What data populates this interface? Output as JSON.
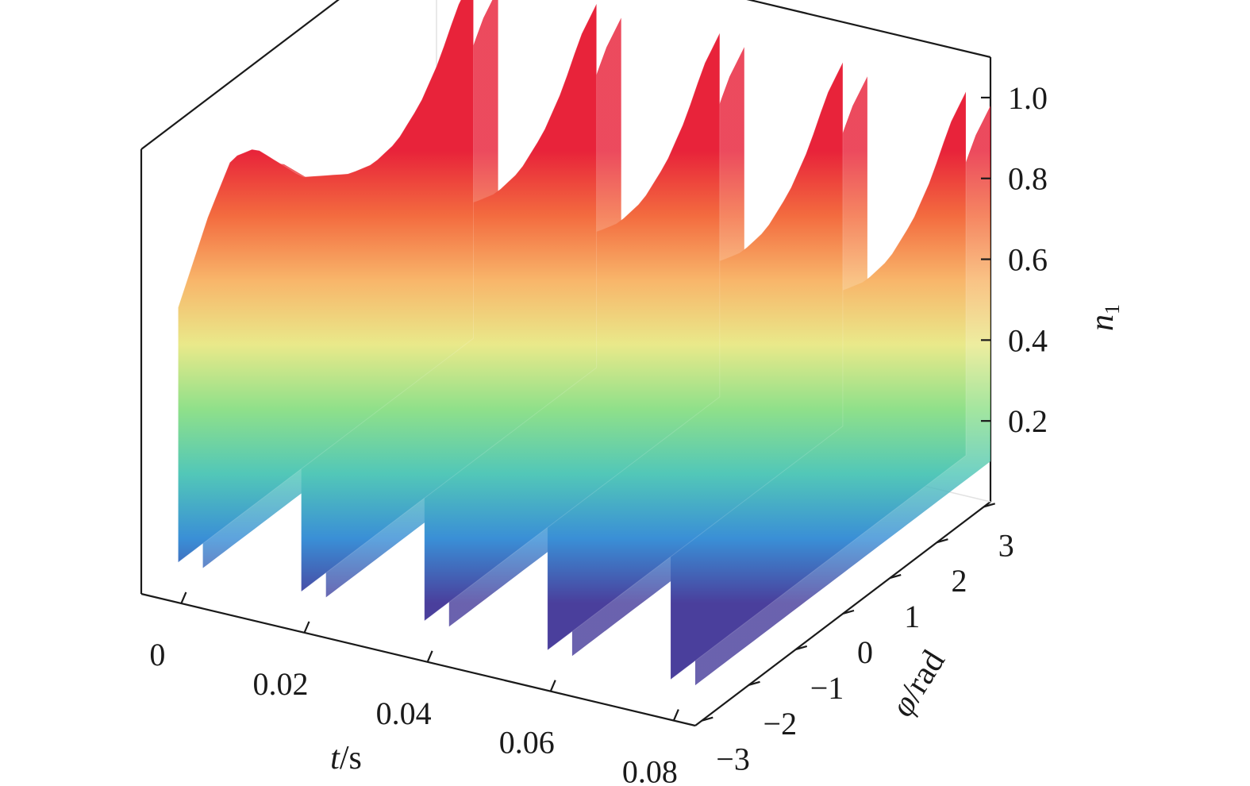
{
  "chart_data": {
    "type": "surface3d",
    "title": "",
    "x_axis": {
      "label_var": "t",
      "label_unit": "/s",
      "range": [
        0,
        0.09
      ],
      "ticks": [
        0,
        0.02,
        0.04,
        0.06,
        0.08
      ],
      "tick_labels": [
        "0",
        "0.02",
        "0.04",
        "0.06",
        "0.08"
      ]
    },
    "y_axis": {
      "label_var": "φ",
      "label_unit": "/rad",
      "range": [
        -3.14,
        3.14
      ],
      "ticks": [
        -3,
        -2,
        -1,
        0,
        1,
        2,
        3
      ],
      "tick_labels": [
        "−3",
        "−2",
        "−1",
        "0",
        "1",
        "2",
        "3"
      ]
    },
    "z_axis": {
      "label_var": "n",
      "label_sub": "1",
      "range": [
        0.07,
        1.1
      ],
      "ticks": [
        0.2,
        0.4,
        0.6,
        0.8,
        1.0
      ],
      "tick_labels": [
        "0.2",
        "0.4",
        "0.6",
        "0.8",
        "1.0"
      ]
    },
    "colormap": "spectral-reversed",
    "colormap_stops": [
      "#4a3f9c",
      "#3a8fd6",
      "#52c7b8",
      "#8fe08a",
      "#e9e98a",
      "#f8b56a",
      "#f36b3f",
      "#e8233a"
    ],
    "grid": false,
    "legend": "none",
    "surface": {
      "period_t": 0.02,
      "num_periods": 4.5,
      "sheet_t_extent": 0.004,
      "profile_phi": [
        -3.14,
        -2.5,
        -2.0,
        -1.5,
        -1.0,
        -0.5,
        0.0,
        0.5,
        1.0,
        1.5,
        2.0,
        2.4,
        2.8,
        3.14
      ],
      "profile_n_max": [
        0.73,
        0.9,
        1.0,
        0.98,
        0.9,
        0.82,
        0.78,
        0.74,
        0.72,
        0.73,
        0.78,
        0.85,
        0.95,
        1.0
      ],
      "n_min": 0.1
    }
  }
}
